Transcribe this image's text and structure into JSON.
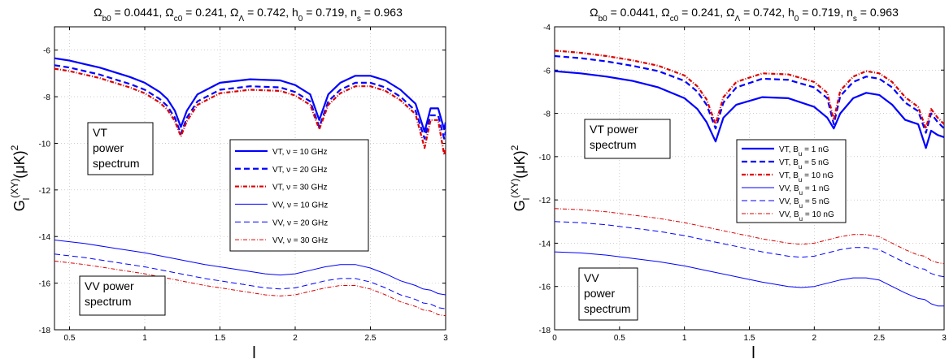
{
  "chart_data": [
    {
      "type": "line",
      "title": "Ω_b0 = 0.0441, Ω_c0 = 0.241, Ω_Λ = 0.742, h_0 = 0.719, n_s = 0.963",
      "title_html": "Ω<tspan baseline-shift='sub' font-size='10'>b0</tspan> = 0.0441, Ω<tspan baseline-shift='sub' font-size='10'>c0</tspan> = 0.241, Ω<tspan baseline-shift='sub' font-size='10'>Λ</tspan> = 0.742, h<tspan baseline-shift='sub' font-size='10'>0</tspan> = 0.719, n<tspan baseline-shift='sub' font-size='10'>s</tspan> = 0.963",
      "xlabel": "l",
      "ylabel": "G_l^(XY)(μK)^2",
      "xlim": [
        0.4,
        3
      ],
      "ylim": [
        -18,
        -5
      ],
      "xticks": [
        0.5,
        1,
        1.5,
        2,
        2.5,
        3
      ],
      "xticklabels": [
        "0.5",
        "1",
        "1.5",
        "2",
        "2.5",
        "3"
      ],
      "yticks": [
        -18,
        -16,
        -14,
        -12,
        -10,
        -8,
        -6
      ],
      "yticklabels": [
        "-18",
        "-16",
        "-14",
        "-12",
        "-10",
        "-8",
        "-6"
      ],
      "grid": true,
      "legend_position": "center-right",
      "annotations": [
        {
          "text": [
            "VT",
            "power",
            "spectrum"
          ]
        },
        {
          "text": [
            "VV power",
            "spectrum"
          ]
        }
      ],
      "series": [
        {
          "name": "VT, ν = 10 GHz",
          "color": "#0000ff",
          "dash": "solid",
          "width": 2.2,
          "x": [
            0.4,
            0.5,
            0.6,
            0.7,
            0.8,
            0.9,
            1.0,
            1.1,
            1.15,
            1.2,
            1.24,
            1.28,
            1.35,
            1.5,
            1.7,
            1.9,
            2.0,
            2.1,
            2.16,
            2.22,
            2.3,
            2.4,
            2.5,
            2.6,
            2.7,
            2.8,
            2.86,
            2.9,
            2.95,
            2.99,
            3.0
          ],
          "y": [
            -6.35,
            -6.45,
            -6.6,
            -6.75,
            -6.95,
            -7.15,
            -7.4,
            -7.8,
            -8.1,
            -8.6,
            -9.3,
            -8.6,
            -7.9,
            -7.4,
            -7.25,
            -7.3,
            -7.5,
            -7.9,
            -9.0,
            -7.9,
            -7.4,
            -7.1,
            -7.1,
            -7.3,
            -7.7,
            -8.3,
            -9.5,
            -8.5,
            -8.5,
            -9.4,
            -9.1
          ]
        },
        {
          "name": "VT, ν = 20 GHz",
          "color": "#0000ff",
          "dash": "7 4",
          "width": 2.2,
          "x": [
            0.4,
            0.5,
            0.6,
            0.7,
            0.8,
            0.9,
            1.0,
            1.1,
            1.15,
            1.2,
            1.24,
            1.28,
            1.35,
            1.5,
            1.7,
            1.9,
            2.0,
            2.1,
            2.16,
            2.22,
            2.3,
            2.4,
            2.5,
            2.6,
            2.7,
            2.8,
            2.86,
            2.9,
            2.95,
            2.99,
            3.0
          ],
          "y": [
            -6.65,
            -6.75,
            -6.9,
            -7.05,
            -7.25,
            -7.45,
            -7.7,
            -8.1,
            -8.4,
            -8.9,
            -9.6,
            -8.9,
            -8.2,
            -7.7,
            -7.55,
            -7.6,
            -7.8,
            -8.2,
            -9.3,
            -8.2,
            -7.7,
            -7.4,
            -7.4,
            -7.6,
            -8.0,
            -8.6,
            -9.8,
            -8.8,
            -8.8,
            -9.8,
            -9.5
          ]
        },
        {
          "name": "VT, ν = 30 GHz",
          "color": "#dd0000",
          "dash": "5 2 1 2",
          "width": 2.2,
          "x": [
            0.4,
            0.5,
            0.6,
            0.7,
            0.8,
            0.9,
            1.0,
            1.1,
            1.15,
            1.2,
            1.24,
            1.28,
            1.35,
            1.5,
            1.7,
            1.9,
            2.0,
            2.1,
            2.16,
            2.22,
            2.3,
            2.4,
            2.5,
            2.6,
            2.7,
            2.8,
            2.86,
            2.9,
            2.95,
            2.99,
            3.0
          ],
          "y": [
            -6.8,
            -6.9,
            -7.05,
            -7.2,
            -7.4,
            -7.6,
            -7.85,
            -8.25,
            -8.55,
            -9.05,
            -9.7,
            -9.05,
            -8.35,
            -7.85,
            -7.7,
            -7.75,
            -7.95,
            -8.35,
            -9.4,
            -8.35,
            -7.85,
            -7.55,
            -7.55,
            -7.75,
            -8.15,
            -8.75,
            -10.2,
            -9.0,
            -9.0,
            -10.5,
            -10.2
          ]
        },
        {
          "name": "VV, ν = 10 GHz",
          "color": "#0000ff",
          "dash": "solid",
          "width": 1,
          "x": [
            0.4,
            0.6,
            0.8,
            1.0,
            1.2,
            1.4,
            1.6,
            1.8,
            1.9,
            2.0,
            2.1,
            2.2,
            2.3,
            2.4,
            2.5,
            2.6,
            2.7,
            2.75,
            2.8,
            2.85,
            2.9,
            2.95,
            3.0
          ],
          "y": [
            -14.15,
            -14.3,
            -14.5,
            -14.7,
            -14.95,
            -15.2,
            -15.4,
            -15.6,
            -15.65,
            -15.6,
            -15.45,
            -15.3,
            -15.2,
            -15.2,
            -15.35,
            -15.6,
            -15.9,
            -16.0,
            -16.1,
            -16.25,
            -16.3,
            -16.45,
            -16.5
          ]
        },
        {
          "name": "VV, ν = 20 GHz",
          "color": "#0000ff",
          "dash": "7 4",
          "width": 1,
          "x": [
            0.4,
            0.6,
            0.8,
            1.0,
            1.2,
            1.4,
            1.6,
            1.8,
            1.9,
            2.0,
            2.1,
            2.2,
            2.3,
            2.4,
            2.5,
            2.6,
            2.7,
            2.75,
            2.8,
            2.85,
            2.9,
            2.95,
            3.0
          ],
          "y": [
            -14.75,
            -14.9,
            -15.1,
            -15.3,
            -15.55,
            -15.8,
            -16.0,
            -16.2,
            -16.25,
            -16.2,
            -16.05,
            -15.9,
            -15.8,
            -15.8,
            -15.95,
            -16.2,
            -16.5,
            -16.6,
            -16.7,
            -16.85,
            -16.9,
            -17.05,
            -17.1
          ]
        },
        {
          "name": "VV, ν = 30 GHz",
          "color": "#dd0000",
          "dash": "5 2 1 2",
          "width": 1,
          "x": [
            0.4,
            0.6,
            0.8,
            1.0,
            1.2,
            1.4,
            1.6,
            1.8,
            1.9,
            2.0,
            2.1,
            2.2,
            2.3,
            2.4,
            2.5,
            2.6,
            2.7,
            2.75,
            2.8,
            2.85,
            2.9,
            2.95,
            3.0
          ],
          "y": [
            -15.05,
            -15.2,
            -15.4,
            -15.6,
            -15.85,
            -16.1,
            -16.3,
            -16.5,
            -16.55,
            -16.5,
            -16.35,
            -16.2,
            -16.1,
            -16.1,
            -16.25,
            -16.5,
            -16.8,
            -16.9,
            -17.0,
            -17.15,
            -17.2,
            -17.35,
            -17.4
          ]
        }
      ]
    },
    {
      "type": "line",
      "title": "Ω_b0 = 0.0441, Ω_c0 = 0.241, Ω_Λ = 0.742, h_0 = 0.719, n_s = 0.963",
      "title_html": "Ω<tspan baseline-shift='sub' font-size='10'>b0</tspan> = 0.0441, Ω<tspan baseline-shift='sub' font-size='10'>c0</tspan> = 0.241, Ω<tspan baseline-shift='sub' font-size='10'>Λ</tspan> = 0.742, h<tspan baseline-shift='sub' font-size='10'>0</tspan> = 0.719, n<tspan baseline-shift='sub' font-size='10'>s</tspan> = 0.963",
      "xlabel": "l",
      "ylabel": "G_l^(XY)(μK)^2",
      "xlim": [
        0,
        3
      ],
      "ylim": [
        -18,
        -4
      ],
      "xticks": [
        0,
        0.5,
        1,
        1.5,
        2,
        2.5,
        3
      ],
      "xticklabels": [
        "0",
        "0.5",
        "1",
        "1.5",
        "2",
        "2.5",
        "3"
      ],
      "yticks": [
        -18,
        -16,
        -14,
        -12,
        -10,
        -8,
        -6,
        -4
      ],
      "yticklabels": [
        "-18",
        "-16",
        "-14",
        "-12",
        "-10",
        "-8",
        "-6",
        "-4"
      ],
      "grid": true,
      "legend_position": "center-right",
      "annotations": [
        {
          "text": [
            "VT power",
            "spectrum"
          ]
        },
        {
          "text": [
            "VV",
            "power",
            "spectrum"
          ]
        }
      ],
      "series": [
        {
          "name": "VT, B_u = 1 nG",
          "legend_html": "VT, B<tspan baseline-shift='sub' font-size='8'>u</tspan> = 1 nG",
          "color": "#0000ff",
          "dash": "solid",
          "width": 2.2,
          "x": [
            0,
            0.2,
            0.4,
            0.6,
            0.8,
            1.0,
            1.1,
            1.17,
            1.24,
            1.3,
            1.4,
            1.6,
            1.8,
            2.0,
            2.1,
            2.15,
            2.2,
            2.3,
            2.4,
            2.5,
            2.6,
            2.7,
            2.8,
            2.86,
            2.9,
            2.95,
            3.0
          ],
          "y": [
            -6.05,
            -6.15,
            -6.3,
            -6.5,
            -6.8,
            -7.3,
            -7.8,
            -8.4,
            -9.3,
            -8.2,
            -7.6,
            -7.25,
            -7.3,
            -7.7,
            -8.2,
            -8.7,
            -8.0,
            -7.3,
            -7.05,
            -7.15,
            -7.6,
            -8.3,
            -8.5,
            -9.6,
            -8.8,
            -9.0,
            -9.1
          ]
        },
        {
          "name": "VT, B_u = 5 nG",
          "legend_html": "VT, B<tspan baseline-shift='sub' font-size='8'>u</tspan> = 5 nG",
          "color": "#0000ff",
          "dash": "7 4",
          "width": 2.2,
          "x": [
            0,
            0.2,
            0.4,
            0.6,
            0.8,
            1.0,
            1.1,
            1.17,
            1.24,
            1.3,
            1.4,
            1.6,
            1.8,
            2.0,
            2.1,
            2.15,
            2.2,
            2.3,
            2.4,
            2.5,
            2.6,
            2.7,
            2.8,
            2.86,
            2.9,
            2.95,
            3.0
          ],
          "y": [
            -5.35,
            -5.45,
            -5.6,
            -5.8,
            -6.05,
            -6.5,
            -7.0,
            -7.6,
            -8.7,
            -7.5,
            -6.8,
            -6.4,
            -6.45,
            -6.8,
            -7.3,
            -8.5,
            -7.2,
            -6.55,
            -6.3,
            -6.4,
            -6.8,
            -7.5,
            -7.9,
            -8.9,
            -8.0,
            -8.4,
            -8.7
          ]
        },
        {
          "name": "VT, B_u = 10 nG",
          "legend_html": "VT, B<tspan baseline-shift='sub' font-size='8'>u</tspan> = 10 nG",
          "color": "#dd0000",
          "dash": "5 2 1 2",
          "width": 2.2,
          "x": [
            0,
            0.2,
            0.4,
            0.6,
            0.8,
            1.0,
            1.1,
            1.17,
            1.24,
            1.3,
            1.4,
            1.6,
            1.8,
            2.0,
            2.1,
            2.15,
            2.2,
            2.3,
            2.4,
            2.5,
            2.6,
            2.7,
            2.8,
            2.86,
            2.9,
            2.95,
            3.0
          ],
          "y": [
            -5.1,
            -5.2,
            -5.35,
            -5.55,
            -5.8,
            -6.25,
            -6.75,
            -7.35,
            -8.5,
            -7.25,
            -6.55,
            -6.15,
            -6.2,
            -6.55,
            -7.05,
            -8.3,
            -6.95,
            -6.3,
            -6.05,
            -6.15,
            -6.55,
            -7.25,
            -7.7,
            -8.7,
            -7.8,
            -8.2,
            -8.5
          ]
        },
        {
          "name": "VV, B_u = 1 nG",
          "legend_html": "VV, B<tspan baseline-shift='sub' font-size='8'>u</tspan> = 1 nG",
          "color": "#0000ff",
          "dash": "solid",
          "width": 1,
          "x": [
            0,
            0.2,
            0.4,
            0.6,
            0.8,
            1.0,
            1.2,
            1.4,
            1.6,
            1.8,
            1.9,
            2.0,
            2.1,
            2.2,
            2.3,
            2.4,
            2.5,
            2.6,
            2.7,
            2.8,
            2.85,
            2.9,
            2.95,
            3.0
          ],
          "y": [
            -14.4,
            -14.45,
            -14.55,
            -14.7,
            -14.85,
            -15.05,
            -15.3,
            -15.55,
            -15.8,
            -16.0,
            -16.05,
            -16.0,
            -15.85,
            -15.7,
            -15.6,
            -15.6,
            -15.7,
            -16.0,
            -16.3,
            -16.55,
            -16.6,
            -16.8,
            -16.9,
            -16.9
          ]
        },
        {
          "name": "VV, B_u = 5 nG",
          "legend_html": "VV, B<tspan baseline-shift='sub' font-size='8'>u</tspan> = 5 nG",
          "color": "#0000ff",
          "dash": "7 4",
          "width": 1,
          "x": [
            0,
            0.2,
            0.4,
            0.6,
            0.8,
            1.0,
            1.2,
            1.4,
            1.6,
            1.8,
            1.9,
            2.0,
            2.1,
            2.2,
            2.3,
            2.4,
            2.5,
            2.6,
            2.7,
            2.8,
            2.85,
            2.9,
            2.95,
            3.0
          ],
          "y": [
            -13.0,
            -13.05,
            -13.15,
            -13.3,
            -13.45,
            -13.65,
            -13.9,
            -14.15,
            -14.4,
            -14.6,
            -14.65,
            -14.6,
            -14.45,
            -14.3,
            -14.2,
            -14.2,
            -14.3,
            -14.6,
            -14.9,
            -15.15,
            -15.2,
            -15.4,
            -15.5,
            -15.55
          ]
        },
        {
          "name": "VV, B_u = 10 nG",
          "legend_html": "VV, B<tspan baseline-shift='sub' font-size='8'>u</tspan> = 10 nG",
          "color": "#dd0000",
          "dash": "5 2 1 2",
          "width": 1,
          "x": [
            0,
            0.2,
            0.4,
            0.6,
            0.8,
            1.0,
            1.2,
            1.4,
            1.6,
            1.8,
            1.9,
            2.0,
            2.1,
            2.2,
            2.3,
            2.4,
            2.5,
            2.6,
            2.7,
            2.8,
            2.85,
            2.9,
            2.95,
            3.0
          ],
          "y": [
            -12.4,
            -12.45,
            -12.55,
            -12.7,
            -12.85,
            -13.05,
            -13.3,
            -13.55,
            -13.8,
            -14.0,
            -14.05,
            -14.0,
            -13.85,
            -13.7,
            -13.6,
            -13.6,
            -13.7,
            -14.0,
            -14.3,
            -14.55,
            -14.6,
            -14.8,
            -14.9,
            -14.95
          ]
        }
      ]
    }
  ]
}
